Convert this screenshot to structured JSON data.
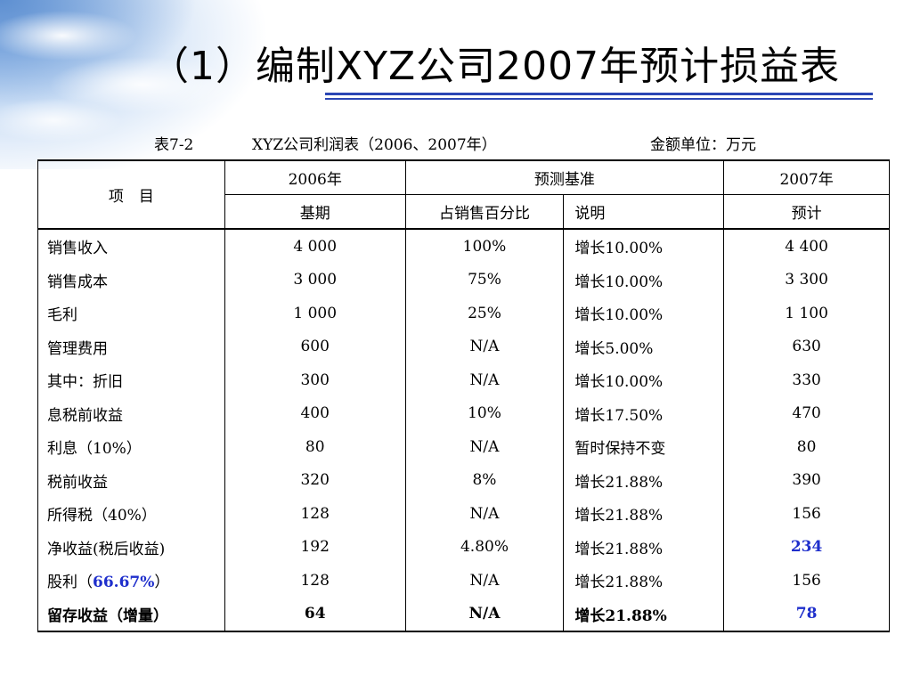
{
  "title": "（1）编制XYZ公司2007年预计损益表",
  "caption": {
    "table_no": "表7-2",
    "table_name": "XYZ公司利润表（2006、2007年）",
    "unit": "金额单位：万元"
  },
  "header": {
    "item": "项　目",
    "y2006": "2006年",
    "basis": "预测基准",
    "y2007": "2007年",
    "base": "基期",
    "pct": "占销售百分比",
    "note": "说明",
    "forecast": "预计"
  },
  "rows": [
    {
      "label": "销售收入",
      "base": "4 000",
      "pct": "100%",
      "note": "增长10.00%",
      "forecast": "4 400"
    },
    {
      "label": "销售成本",
      "base": "3 000",
      "pct": "75%",
      "note": "增长10.00%",
      "forecast": "3 300"
    },
    {
      "label": "毛利",
      "base": "1 000",
      "pct": "25%",
      "note": "增长10.00%",
      "forecast": "1 100"
    },
    {
      "label": "管理费用",
      "base": "600",
      "pct": "N/A",
      "note": "增长5.00%",
      "forecast": "630"
    },
    {
      "label": "其中：折旧",
      "base": "300",
      "pct": "N/A",
      "note": "增长10.00%",
      "forecast": "330"
    },
    {
      "label": "息税前收益",
      "base": "400",
      "pct": "10%",
      "note": "增长17.50%",
      "forecast": "470"
    },
    {
      "label": "利息（10%）",
      "base": "80",
      "pct": "N/A",
      "note": "暂时保持不变",
      "forecast": "80"
    },
    {
      "label": "税前收益",
      "base": "320",
      "pct": "8%",
      "note": "增长21.88%",
      "forecast": "390"
    },
    {
      "label": "所得税（40%）",
      "base": "128",
      "pct": "N/A",
      "note": "增长21.88%",
      "forecast": "156"
    },
    {
      "label": "净收益(税后收益)",
      "base": "192",
      "pct": "4.80%",
      "note": "增长21.88%",
      "forecast": "234"
    },
    {
      "label_prefix": "股利（",
      "label_value": "66.67%",
      "label_suffix": "）",
      "base": "128",
      "pct": "N/A",
      "note": "增长21.88%",
      "forecast": "156"
    },
    {
      "label": "留存收益（增量）",
      "base": "64",
      "pct": "N/A",
      "note": "增长21.88%",
      "forecast": "78"
    }
  ]
}
